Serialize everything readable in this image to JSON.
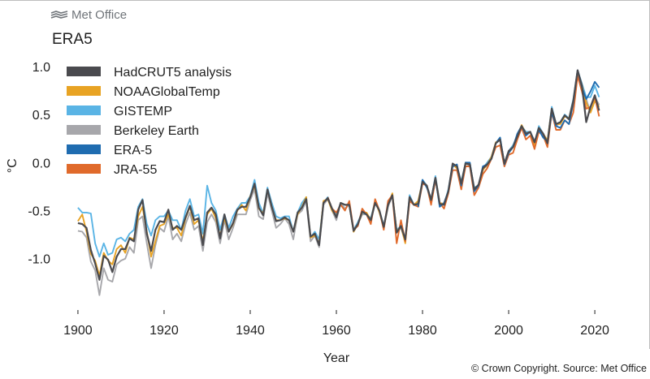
{
  "header": {
    "brand": "Met Office",
    "brand_icon": "met-office-logo-icon",
    "title": "ERA5"
  },
  "footer": {
    "copyright": "© Crown Copyright. Source: Met Office"
  },
  "chart_data": {
    "type": "line",
    "title": "ERA5",
    "xlabel": "Year",
    "ylabel": "°C",
    "xlim": [
      1897,
      2023
    ],
    "ylim": [
      -1.45,
      1.1
    ],
    "xticks": [
      1900,
      1920,
      1940,
      1960,
      1980,
      2000,
      2020
    ],
    "yticks": [
      1.0,
      0.5,
      0.0,
      -0.5,
      -1.0
    ],
    "ytick_labels": [
      "1.0",
      "0.5",
      "0.0",
      "-0.5",
      "-1.0"
    ],
    "grid": false,
    "legend_position": "top-left",
    "base": {
      "start": 1900,
      "values": [
        -0.63,
        -0.62,
        -0.72,
        -0.91,
        -1.02,
        -1.24,
        -0.98,
        -1.04,
        -1.14,
        -0.96,
        -0.9,
        -0.92,
        -0.78,
        -0.82,
        -0.52,
        -0.4,
        -0.72,
        -0.92,
        -0.72,
        -0.6,
        -0.62,
        -0.5,
        -0.68,
        -0.66,
        -0.72,
        -0.58,
        -0.44,
        -0.6,
        -0.6,
        -0.84,
        -0.52,
        -0.48,
        -0.54,
        -0.78,
        -0.56,
        -0.72,
        -0.62,
        -0.5,
        -0.46,
        -0.48,
        -0.35,
        -0.22,
        -0.48,
        -0.55,
        -0.26,
        -0.46,
        -0.62,
        -0.6,
        -0.56,
        -0.6,
        -0.74,
        -0.52,
        -0.46,
        -0.38,
        -0.78,
        -0.74,
        -0.84,
        -0.42,
        -0.38,
        -0.48,
        -0.56,
        -0.42,
        -0.46,
        -0.44,
        -0.7,
        -0.64,
        -0.52,
        -0.54,
        -0.6,
        -0.4,
        -0.5,
        -0.68,
        -0.44,
        -0.34,
        -0.72,
        -0.66,
        -0.82,
        -0.36,
        -0.44,
        -0.42,
        -0.2,
        -0.24,
        -0.4,
        -0.16,
        -0.42,
        -0.44,
        -0.3,
        -0.02,
        -0.04,
        -0.22,
        0.0,
        -0.02,
        -0.28,
        -0.24,
        -0.06,
        -0.02,
        0.06,
        0.2,
        0.24,
        -0.02,
        0.12,
        0.16,
        0.28,
        0.38,
        0.3,
        0.32,
        0.2,
        0.36,
        0.3,
        0.22,
        0.56,
        0.4,
        0.42,
        0.48,
        0.46,
        0.64,
        0.96,
        0.82,
        0.66,
        0.72,
        0.8,
        0.7
      ]
    },
    "series": [
      {
        "name": "HadCRUT5 analysis",
        "color": "#4a4a4e",
        "offsets": [
          0.0,
          -0.02,
          0.04,
          0.0,
          -0.03,
          0.02,
          0.01,
          0.03,
          0.0,
          -0.02,
          0.0,
          0.02,
          -0.01,
          0.0,
          0.03,
          0.01,
          -0.02,
          0.0,
          0.02,
          -0.01,
          0.0,
          0.01,
          -0.02,
          0.0,
          0.02,
          0.01,
          -0.01,
          0.0,
          0.02,
          -0.02,
          0.0,
          0.01,
          0.0,
          -0.01,
          0.02,
          0.0,
          -0.01,
          0.01,
          0.0,
          0.02,
          -0.01,
          0.0,
          0.01,
          0.0,
          -0.02,
          0.0,
          0.01,
          0.0,
          -0.01,
          0.0,
          0.02,
          0.0,
          -0.01,
          0.0,
          0.01,
          0.0,
          -0.02,
          0.0,
          0.01,
          0.0,
          -0.01,
          0.0,
          0.02,
          0.0,
          -0.01,
          0.0,
          0.01,
          0.0,
          0.0,
          -0.02,
          0.0,
          0.01,
          0.0,
          0.0,
          -0.01,
          0.0,
          0.02,
          0.0,
          0.0,
          -0.01,
          0.0,
          0.0,
          0.01,
          0.0,
          -0.01,
          0.0,
          0.0,
          0.01,
          0.0,
          0.0,
          -0.01,
          0.0,
          0.0,
          0.01,
          0.0,
          0.0,
          -0.02,
          0.0,
          0.0,
          0.01,
          0.0,
          0.0,
          -0.01,
          0.0,
          0.0,
          0.0,
          0.01,
          0.0,
          0.0,
          -0.02,
          0.0,
          0.0,
          0.0,
          0.01,
          -0.01,
          0.0,
          0.0,
          -0.02,
          -0.24,
          -0.14,
          -0.1,
          -0.16,
          -0.22,
          -0.26
        ]
      },
      {
        "name": "NOAAGlobalTemp",
        "color": "#e8a323",
        "offsets": [
          0.02,
          0.08,
          0.0,
          -0.04,
          0.0,
          0.06,
          0.04,
          0.02,
          0.08,
          0.06,
          0.04,
          -0.02,
          0.0,
          0.02,
          -0.04,
          -0.06,
          0.0,
          -0.06,
          -0.1,
          -0.06,
          -0.02,
          -0.04,
          0.0,
          -0.02,
          -0.04,
          0.0,
          -0.02,
          -0.04,
          0.0,
          0.02,
          -0.02,
          0.0,
          -0.04,
          0.02,
          -0.02,
          0.0,
          -0.02,
          0.0,
          0.02,
          -0.02,
          0.0,
          -0.02,
          0.0,
          0.02,
          -0.02,
          0.0,
          0.02,
          0.0,
          -0.02,
          0.0,
          0.02,
          -0.02,
          0.0,
          0.02,
          0.0,
          -0.02,
          0.0,
          0.02,
          0.0,
          -0.02,
          0.0,
          0.0,
          0.02,
          0.0,
          -0.02,
          0.0,
          0.0,
          0.02,
          0.0,
          0.0,
          -0.02,
          0.0,
          0.0,
          0.02,
          0.0,
          0.0,
          -0.02,
          0.0,
          0.0,
          0.02,
          0.0,
          0.0,
          -0.02,
          0.0,
          0.0,
          0.01,
          0.0,
          0.0,
          -0.02,
          0.0,
          0.0,
          0.01,
          0.0,
          0.0,
          -0.02,
          0.0,
          0.0,
          0.01,
          0.0,
          0.0,
          -0.02,
          0.0,
          0.0,
          0.01,
          0.0,
          0.0,
          -0.02,
          0.0,
          0.0,
          0.01,
          0.0,
          0.0,
          -0.02,
          0.0,
          0.0,
          0.0,
          -0.02,
          -0.02,
          -0.04,
          -0.2,
          -0.16,
          -0.12,
          -0.18,
          -0.24,
          -0.3
        ]
      },
      {
        "name": "GISTEMP",
        "color": "#5ab4e5",
        "offsets": [
          0.16,
          0.1,
          0.2,
          0.38,
          0.18,
          0.26,
          0.14,
          0.08,
          0.2,
          0.16,
          0.12,
          0.1,
          0.04,
          0.12,
          0.06,
          0.02,
          0.08,
          0.16,
          0.12,
          0.04,
          0.06,
          0.0,
          0.08,
          0.06,
          0.02,
          0.08,
          0.06,
          0.04,
          0.06,
          0.1,
          0.28,
          0.06,
          0.04,
          0.08,
          0.02,
          0.04,
          0.06,
          0.02,
          0.04,
          0.06,
          0.0,
          0.04,
          0.06,
          0.02,
          0.0,
          0.04,
          0.06,
          0.02,
          0.0,
          0.04,
          0.02,
          0.0,
          0.04,
          0.02,
          0.0,
          0.02,
          0.04,
          0.0,
          0.02,
          0.0,
          0.02,
          0.0,
          0.02,
          0.0,
          0.0,
          0.02,
          0.0,
          0.0,
          0.02,
          0.0,
          0.0,
          0.02,
          0.0,
          0.0,
          0.02,
          0.0,
          0.0,
          0.02,
          0.0,
          0.0,
          0.02,
          0.0,
          0.0,
          0.02,
          0.0,
          0.0,
          0.02,
          0.0,
          0.0,
          0.02,
          0.0,
          0.0,
          0.02,
          0.0,
          0.0,
          0.02,
          0.0,
          0.0,
          0.02,
          0.0,
          0.0,
          0.02,
          0.0,
          0.0,
          0.02,
          0.0,
          0.0,
          0.02,
          0.0,
          0.0,
          0.02,
          0.0,
          0.0,
          0.02,
          0.0,
          0.02,
          0.0,
          0.0,
          0.02,
          -0.04,
          0.0,
          -0.02,
          0.04,
          0.02,
          -0.08
        ]
      },
      {
        "name": "Berkeley Earth",
        "color": "#a7a7ab",
        "offsets": [
          -0.08,
          -0.1,
          -0.06,
          -0.12,
          -0.1,
          -0.14,
          -0.12,
          -0.18,
          -0.1,
          -0.1,
          -0.12,
          -0.08,
          -0.1,
          -0.12,
          -0.08,
          -0.16,
          -0.12,
          -0.18,
          -0.14,
          -0.08,
          -0.1,
          -0.06,
          -0.12,
          -0.08,
          -0.1,
          -0.06,
          -0.08,
          -0.1,
          -0.06,
          -0.08,
          -0.1,
          -0.06,
          -0.08,
          -0.06,
          -0.04,
          -0.08,
          -0.06,
          -0.04,
          -0.08,
          -0.06,
          -0.04,
          -0.06,
          -0.08,
          -0.04,
          -0.06,
          -0.04,
          -0.06,
          -0.04,
          -0.02,
          -0.04,
          -0.06,
          -0.02,
          -0.04,
          -0.02,
          -0.04,
          -0.02,
          -0.04,
          -0.02,
          0.0,
          -0.02,
          -0.04,
          0.0,
          -0.02,
          0.0,
          -0.02,
          0.0,
          -0.02,
          0.0,
          0.0,
          -0.02,
          0.0,
          0.0,
          -0.02,
          0.0,
          0.0,
          -0.02,
          0.0,
          0.0,
          0.0,
          -0.02,
          0.0,
          0.0,
          0.0,
          -0.02,
          0.0,
          0.0,
          0.0,
          -0.02,
          0.0,
          0.0,
          0.0,
          -0.02,
          0.0,
          0.0,
          0.0,
          -0.02,
          0.0,
          0.0,
          0.0,
          -0.02,
          0.0,
          0.0,
          0.0,
          -0.02,
          0.0,
          0.0,
          0.0,
          -0.02,
          0.0,
          0.0,
          0.0,
          -0.02,
          0.0,
          0.0,
          0.0,
          -0.02,
          0.0,
          0.0,
          0.0,
          -0.2,
          -0.12,
          -0.1,
          -0.16,
          -0.2,
          -0.24
        ]
      },
      {
        "name": "ERA-5",
        "color": "#1f6cb0",
        "start": 1979,
        "offsets": [
          -0.04,
          0.02,
          -0.02,
          0.02,
          0.0,
          -0.04,
          0.02,
          0.0,
          -0.02,
          0.02,
          -0.02,
          0.0,
          0.02,
          -0.02,
          0.0,
          0.02,
          0.0,
          -0.02,
          0.0,
          0.02,
          0.0,
          -0.02,
          0.0,
          0.02,
          0.0,
          -0.02,
          0.0,
          0.02,
          -0.02,
          -0.04,
          0.0,
          -0.04,
          -0.02,
          -0.06,
          -0.04,
          -0.06,
          -0.02,
          0.0,
          -0.04,
          0.0,
          0.02,
          0.04,
          0.08
        ]
      },
      {
        "name": "JRA-55",
        "color": "#e06a2b",
        "start": 1958,
        "offsets": [
          0.02,
          0.0,
          0.04,
          -0.02,
          -0.04,
          0.04,
          0.0,
          -0.02,
          0.04,
          0.0,
          -0.04,
          0.02,
          0.0,
          -0.02,
          0.04,
          0.0,
          -0.12,
          0.06,
          0.0,
          -0.04,
          0.0,
          -0.04,
          -0.02,
          0.0,
          -0.04,
          -0.02,
          0.0,
          -0.04,
          -0.02,
          -0.06,
          -0.04,
          -0.06,
          -0.04,
          -0.02,
          -0.06,
          -0.02,
          -0.06,
          -0.04,
          -0.02,
          -0.04,
          -0.06,
          -0.02,
          -0.04,
          -0.06,
          -0.04,
          -0.02,
          -0.06,
          -0.04,
          -0.06,
          -0.04,
          -0.02,
          -0.06,
          -0.04,
          -0.06,
          -0.08,
          -0.04,
          -0.06,
          -0.12,
          -0.06,
          -0.08,
          -0.1,
          -0.14,
          -0.12,
          -0.22,
          -0.16,
          -0.14
        ]
      }
    ]
  }
}
